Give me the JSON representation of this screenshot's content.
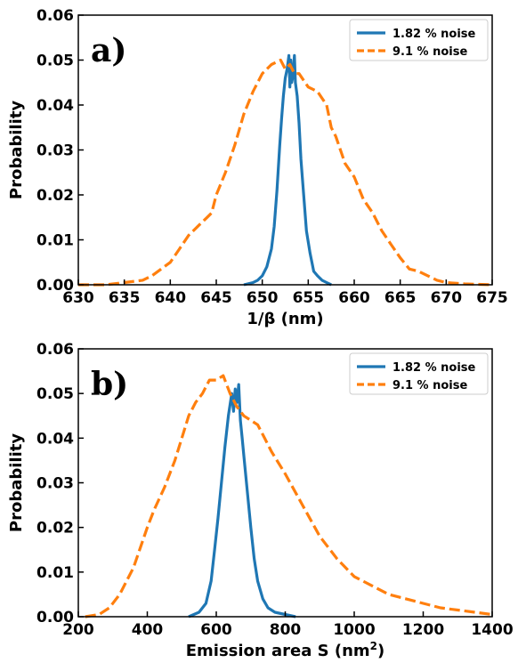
{
  "chart_data": [
    {
      "panel": "a)",
      "type": "line",
      "xlabel": "1/β (nm)",
      "ylabel": "Probability",
      "xlim": [
        630,
        675
      ],
      "ylim": [
        0,
        0.06
      ],
      "xticks": [
        "630",
        "635",
        "640",
        "645",
        "650",
        "655",
        "660",
        "665",
        "670",
        "675"
      ],
      "yticks": [
        "0.00",
        "0.01",
        "0.02",
        "0.03",
        "0.04",
        "0.05",
        "0.06"
      ],
      "legend": "top-right",
      "series": [
        {
          "name": "1.82 % noise",
          "style": "solid",
          "color": "#1f77b4",
          "x": [
            648.0,
            649.0,
            649.5,
            650.0,
            650.5,
            651.0,
            651.3,
            651.6,
            651.9,
            652.1,
            652.3,
            652.5,
            652.7,
            652.9,
            653.0,
            653.1,
            653.2,
            653.3,
            653.5,
            653.6,
            653.8,
            654.0,
            654.2,
            654.5,
            654.8,
            655.2,
            655.6,
            656.0,
            656.5,
            657.0,
            657.5
          ],
          "y": [
            0.0,
            0.0005,
            0.001,
            0.002,
            0.004,
            0.008,
            0.013,
            0.021,
            0.031,
            0.037,
            0.042,
            0.046,
            0.048,
            0.051,
            0.044,
            0.05,
            0.045,
            0.046,
            0.051,
            0.045,
            0.042,
            0.036,
            0.028,
            0.02,
            0.012,
            0.007,
            0.003,
            0.002,
            0.001,
            0.0005,
            0.0
          ]
        },
        {
          "name": "9.1 % noise",
          "style": "dashed",
          "color": "#ff7f0e",
          "x": [
            630,
            633,
            635,
            637,
            638,
            640,
            641,
            642,
            643,
            644,
            644.5,
            645,
            646,
            647,
            648,
            649,
            650,
            651,
            652,
            652.5,
            653,
            653.5,
            654,
            655,
            656,
            657,
            657.5,
            658,
            659,
            660,
            661,
            662,
            663,
            664,
            665,
            666,
            667,
            668,
            669,
            670,
            672,
            675
          ],
          "y": [
            0.0,
            0.0,
            0.0005,
            0.001,
            0.002,
            0.005,
            0.008,
            0.011,
            0.013,
            0.015,
            0.016,
            0.02,
            0.025,
            0.031,
            0.038,
            0.043,
            0.047,
            0.049,
            0.05,
            0.048,
            0.049,
            0.047,
            0.047,
            0.044,
            0.043,
            0.04,
            0.035,
            0.033,
            0.027,
            0.024,
            0.019,
            0.016,
            0.012,
            0.009,
            0.006,
            0.0035,
            0.003,
            0.002,
            0.001,
            0.0005,
            0.0002,
            0.0
          ]
        }
      ]
    },
    {
      "panel": "b)",
      "type": "line",
      "xlabel": "Emission area S (nm",
      "xlabel_sup": "2",
      "xlabel_end": ")",
      "ylabel": "Probability",
      "xlim": [
        200,
        1400
      ],
      "ylim": [
        0,
        0.06
      ],
      "xticks": [
        "200",
        "400",
        "600",
        "800",
        "1000",
        "1200",
        "1400"
      ],
      "yticks": [
        "0.00",
        "0.01",
        "0.02",
        "0.03",
        "0.04",
        "0.05",
        "0.06"
      ],
      "legend": "top-right",
      "series": [
        {
          "name": "1.82 % noise",
          "style": "solid",
          "color": "#1f77b4",
          "x": [
            520,
            550,
            570,
            585,
            595,
            605,
            615,
            625,
            635,
            645,
            650,
            655,
            660,
            665,
            670,
            675,
            680,
            690,
            700,
            710,
            720,
            735,
            750,
            770,
            800,
            830
          ],
          "y": [
            0.0,
            0.001,
            0.003,
            0.008,
            0.015,
            0.022,
            0.03,
            0.038,
            0.045,
            0.05,
            0.046,
            0.051,
            0.048,
            0.052,
            0.044,
            0.04,
            0.036,
            0.028,
            0.02,
            0.013,
            0.008,
            0.004,
            0.002,
            0.001,
            0.0005,
            0.0
          ]
        },
        {
          "name": "9.1 % noise",
          "style": "dashed",
          "color": "#ff7f0e",
          "x": [
            220,
            260,
            290,
            320,
            360,
            400,
            420,
            450,
            480,
            500,
            520,
            540,
            560,
            580,
            600,
            620,
            640,
            660,
            680,
            700,
            720,
            740,
            760,
            800,
            850,
            900,
            950,
            1000,
            1050,
            1100,
            1150,
            1200,
            1250,
            1300,
            1350,
            1400
          ],
          "y": [
            0.0,
            0.0005,
            0.002,
            0.005,
            0.011,
            0.02,
            0.024,
            0.029,
            0.035,
            0.04,
            0.045,
            0.048,
            0.05,
            0.053,
            0.053,
            0.054,
            0.05,
            0.047,
            0.045,
            0.044,
            0.043,
            0.04,
            0.037,
            0.032,
            0.025,
            0.018,
            0.013,
            0.009,
            0.007,
            0.005,
            0.004,
            0.003,
            0.002,
            0.0015,
            0.001,
            0.0005
          ]
        }
      ]
    }
  ]
}
